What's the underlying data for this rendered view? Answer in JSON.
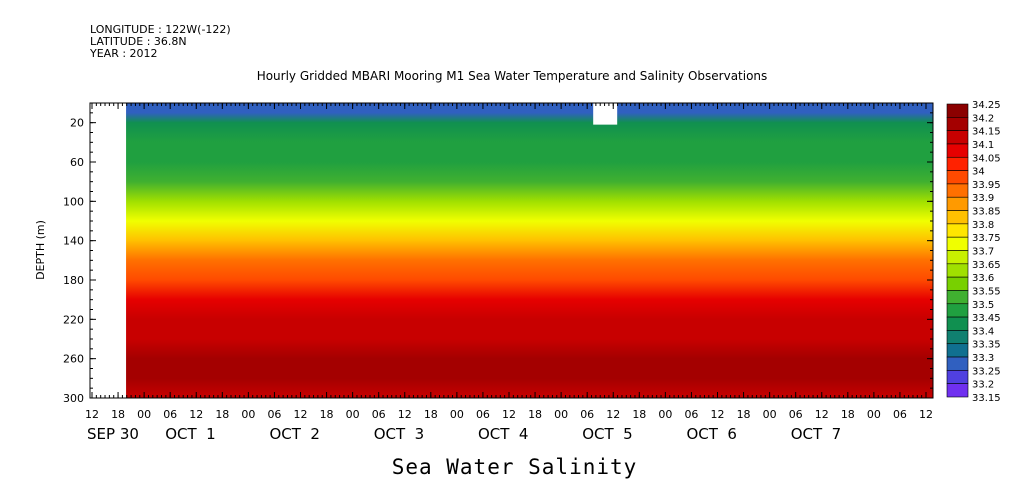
{
  "header": {
    "longitude": "LONGITUDE : 122W(-122)",
    "latitude": "LATITUDE : 36.8N",
    "year": "YEAR : 2012"
  },
  "chart_data": {
    "type": "heatmap",
    "title": "Hourly Gridded MBARI Mooring M1 Sea Water Temperature and Salinity Observations",
    "xlabel": "Sea Water Salinity",
    "ylabel": "DEPTH (m)",
    "ylim": [
      300,
      0
    ],
    "yticks": [
      20,
      60,
      100,
      140,
      180,
      220,
      260,
      300
    ],
    "x_hour_labels": [
      "12",
      "18",
      "00",
      "06",
      "12",
      "18",
      "00",
      "06",
      "12",
      "18",
      "00",
      "06",
      "12",
      "18",
      "00",
      "06",
      "12",
      "18",
      "00",
      "06",
      "12",
      "18",
      "00",
      "06",
      "12",
      "18",
      "00",
      "06",
      "12",
      "18",
      "00",
      "06",
      "12"
    ],
    "x_day_labels": [
      "SEP 30",
      "OCT  1",
      "OCT  2",
      "OCT  3",
      "OCT  4",
      "OCT  5",
      "OCT  6",
      "OCT  7"
    ],
    "colorbar_levels": [
      "34.25",
      "34.2",
      "34.15",
      "34.1",
      "34.05",
      "34",
      "33.95",
      "33.9",
      "33.85",
      "33.8",
      "33.75",
      "33.7",
      "33.65",
      "33.6",
      "33.55",
      "33.5",
      "33.45",
      "33.4",
      "33.35",
      "33.3",
      "33.25",
      "33.2",
      "33.15"
    ],
    "colorbar_colors": [
      "#8b0000",
      "#a40000",
      "#c80000",
      "#e60000",
      "#ff2200",
      "#ff4a00",
      "#ff7000",
      "#ff9a00",
      "#ffc000",
      "#ffe600",
      "#f0ff00",
      "#c8f000",
      "#a0e000",
      "#78d000",
      "#40b030",
      "#20a040",
      "#109050",
      "#108070",
      "#107090",
      "#3060c0",
      "#5040e0",
      "#7030f0",
      "#c000f0"
    ],
    "depth_profile": [
      {
        "depth": 10,
        "value": 33.3
      },
      {
        "depth": 20,
        "value": 33.45
      },
      {
        "depth": 40,
        "value": 33.5
      },
      {
        "depth": 60,
        "value": 33.52
      },
      {
        "depth": 80,
        "value": 33.58
      },
      {
        "depth": 100,
        "value": 33.65
      },
      {
        "depth": 120,
        "value": 33.75
      },
      {
        "depth": 140,
        "value": 33.85
      },
      {
        "depth": 160,
        "value": 33.95
      },
      {
        "depth": 180,
        "value": 34.0
      },
      {
        "depth": 200,
        "value": 34.1
      },
      {
        "depth": 220,
        "value": 34.15
      },
      {
        "depth": 240,
        "value": 34.18
      },
      {
        "depth": 260,
        "value": 34.22
      },
      {
        "depth": 280,
        "value": 34.2
      },
      {
        "depth": 300,
        "value": 34.15
      }
    ],
    "missing_data": [
      {
        "x_start": "SEP 30 12",
        "x_end": "SEP 30 18",
        "depth_start": 0,
        "depth_end": 300
      },
      {
        "x_start": "OCT 5 06",
        "x_end": "OCT 5 10",
        "depth_start": 0,
        "depth_end": 22
      }
    ],
    "grid": false
  }
}
